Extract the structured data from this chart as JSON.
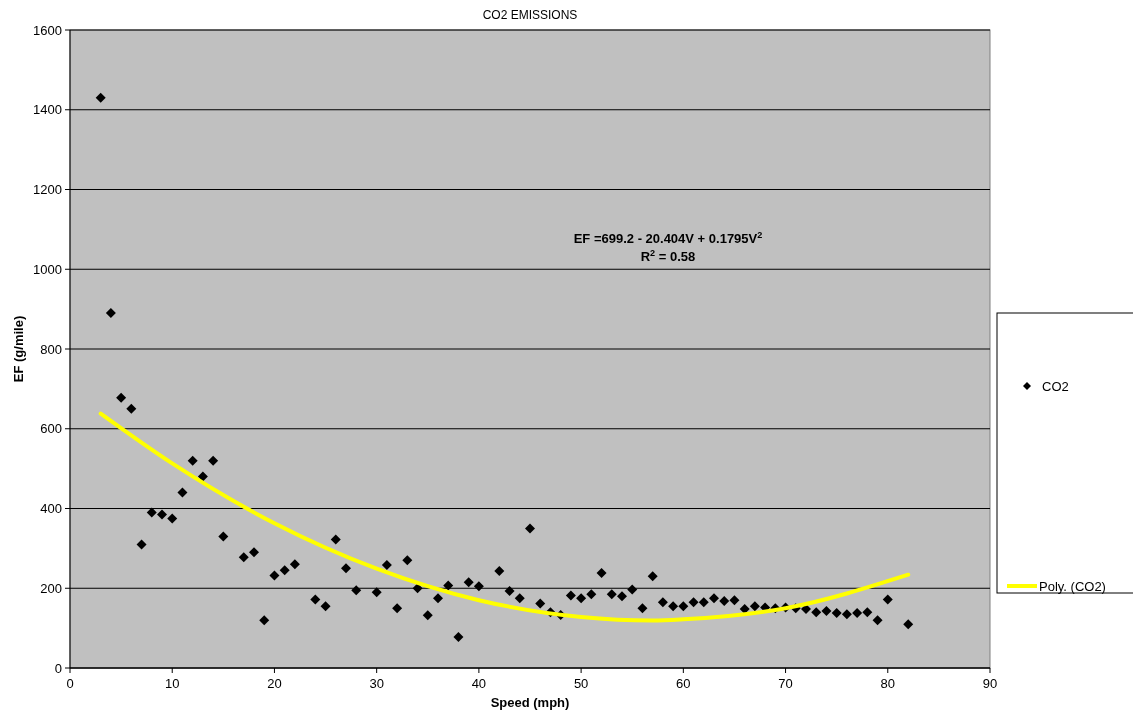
{
  "chart_data": {
    "type": "scatter",
    "title": "CO2 EMISSIONS",
    "xlabel": "Speed (mph)",
    "ylabel": "EF (g/mile)",
    "annotations": [
      "EF =699.2 - 20.404V + 0.1795V$^{2}$",
      "R$^{2}$ = 0.58"
    ],
    "xlim": [
      0,
      90
    ],
    "xticks": [
      0,
      10,
      20,
      30,
      40,
      50,
      60,
      70,
      80,
      90
    ],
    "ylim": [
      0,
      1600
    ],
    "yticks": [
      0,
      200,
      400,
      600,
      800,
      1000,
      1200,
      1400,
      1600
    ],
    "grid": "y",
    "legend": "right",
    "series": [
      {
        "name": "CO2",
        "marker": "diamond",
        "color": "#000000",
        "x": [
          3,
          4,
          5,
          6,
          7,
          8,
          9,
          10,
          11,
          12,
          13,
          14,
          15,
          17,
          18,
          19,
          20,
          21,
          22,
          24,
          25,
          26,
          27,
          28,
          30,
          31,
          32,
          33,
          34,
          35,
          36,
          37,
          38,
          39,
          40,
          42,
          43,
          44,
          45,
          46,
          47,
          48,
          49,
          50,
          51,
          52,
          53,
          54,
          55,
          56,
          57,
          58,
          59,
          60,
          61,
          62,
          63,
          64,
          65,
          66,
          67,
          68,
          69,
          70,
          71,
          72,
          73,
          74,
          75,
          76,
          77,
          78,
          79,
          80,
          82
        ],
        "values": [
          1430,
          890,
          678,
          650,
          310,
          390,
          385,
          375,
          440,
          520,
          480,
          520,
          330,
          278,
          290,
          120,
          232,
          245,
          260,
          172,
          155,
          322,
          250,
          195,
          190,
          258,
          150,
          270,
          200,
          132,
          175,
          207,
          78,
          215,
          205,
          243,
          193,
          175,
          350,
          162,
          140,
          133,
          182,
          175,
          185,
          238,
          185,
          180,
          197,
          150,
          230,
          165,
          155,
          155,
          165,
          165,
          175,
          168,
          170,
          148,
          155,
          152,
          150,
          152,
          150,
          148,
          140,
          143,
          138,
          135,
          138,
          140,
          120,
          172,
          110
        ]
      },
      {
        "name": "Poly. (CO2)",
        "type": "line",
        "line_style": "solid",
        "color": "#ffff00",
        "x": [
          3,
          10,
          20,
          30,
          40,
          50,
          57,
          60,
          70,
          82
        ],
        "values": [
          638,
          513,
          363,
          249,
          170,
          128,
          119,
          122,
          150,
          234
        ]
      }
    ]
  }
}
